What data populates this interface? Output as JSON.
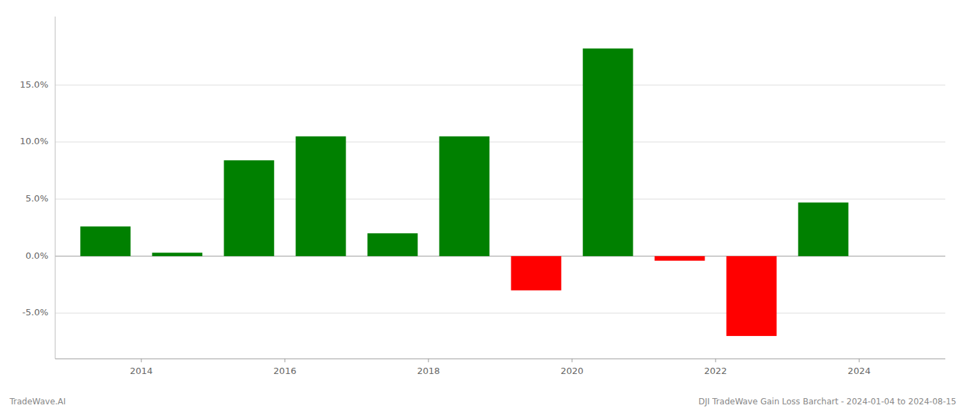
{
  "chart_data": {
    "type": "bar",
    "x": [
      2013.5,
      2014.5,
      2015.5,
      2016.5,
      2017.5,
      2018.5,
      2019.5,
      2020.5,
      2021.5,
      2022.5,
      2023.5
    ],
    "values": [
      2.6,
      0.3,
      8.4,
      10.5,
      2.0,
      10.5,
      -3.0,
      18.2,
      -0.4,
      -7.0,
      4.7
    ],
    "colors": [
      "#008000",
      "#008000",
      "#008000",
      "#008000",
      "#008000",
      "#008000",
      "#FF0000",
      "#008000",
      "#FF0000",
      "#FF0000",
      "#008000"
    ],
    "xlim": [
      2012.8,
      2025.2
    ],
    "xticks": [
      2014,
      2016,
      2018,
      2020,
      2022,
      2024
    ],
    "ylim": [
      -9,
      21
    ],
    "yticks": [
      {
        "value": -5.0,
        "label": "-5.0%"
      },
      {
        "value": 0.0,
        "label": "0.0%"
      },
      {
        "value": 5.0,
        "label": "5.0%"
      },
      {
        "value": 10.0,
        "label": "10.0%"
      },
      {
        "value": 15.0,
        "label": "15.0%"
      }
    ],
    "grid": true,
    "annotations": [
      "TradeWave.AI",
      "DJI TradeWave Gain Loss Barchart - 2024-01-04 to 2024-08-15"
    ]
  }
}
